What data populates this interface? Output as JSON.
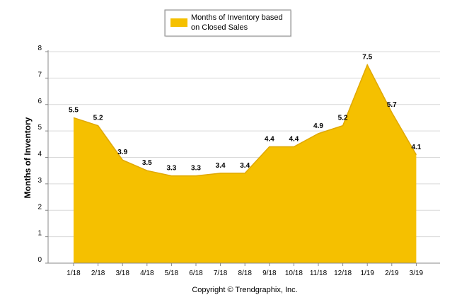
{
  "chart_data": {
    "type": "area",
    "categories": [
      "1/18",
      "2/18",
      "3/18",
      "4/18",
      "5/18",
      "6/18",
      "7/18",
      "8/18",
      "9/18",
      "10/18",
      "11/18",
      "12/18",
      "1/19",
      "2/19",
      "3/19"
    ],
    "series": [
      {
        "name": "Months of Inventory based on Closed Sales",
        "values": [
          5.5,
          5.2,
          3.9,
          3.5,
          3.3,
          3.3,
          3.4,
          3.4,
          4.4,
          4.4,
          4.9,
          5.2,
          7.5,
          5.7,
          4.1
        ],
        "color": "#F5C000"
      }
    ],
    "data_labels": [
      "5.5",
      "5.2",
      "3.9",
      "3.5",
      "3.3",
      "3.3",
      "3.4",
      "3.4",
      "4.4",
      "4.4",
      "4.9",
      "5.2",
      "7.5",
      "5.7",
      "4.1"
    ],
    "ylabel": "Months of Inventory",
    "xlabel": "",
    "ylim": [
      0,
      8
    ],
    "yticks": [
      "0",
      "1",
      "2",
      "3",
      "4",
      "5",
      "6",
      "7",
      "8"
    ],
    "grid": true,
    "legend": {
      "position": "top-center",
      "lines": [
        "Months of Inventory based",
        "on Closed Sales"
      ]
    }
  },
  "footer": {
    "copyright": "Copyright © Trendgraphix, Inc."
  }
}
